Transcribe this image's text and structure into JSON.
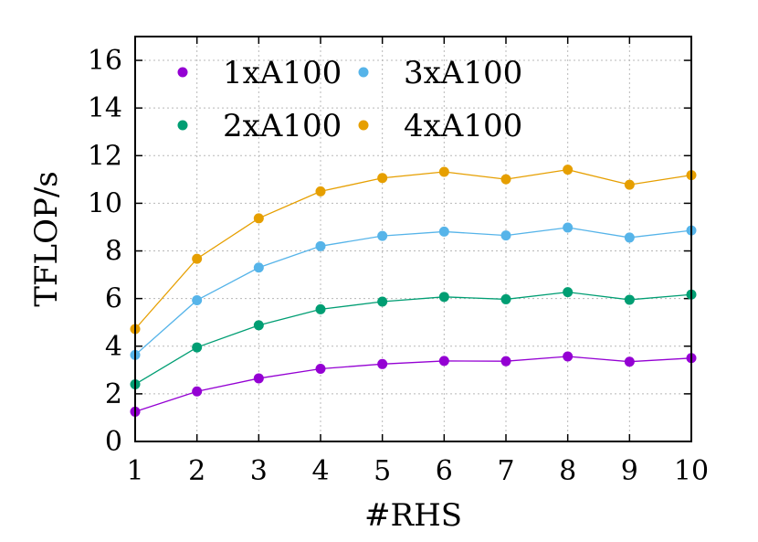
{
  "chart_data": {
    "type": "line",
    "xlabel": "#RHS",
    "ylabel": "TFLOP/s",
    "x": [
      1,
      2,
      3,
      4,
      5,
      6,
      7,
      8,
      9,
      10
    ],
    "xlim": [
      1,
      10
    ],
    "ylim": [
      0,
      17
    ],
    "x_ticks": [
      "1",
      "2",
      "3",
      "4",
      "5",
      "6",
      "7",
      "8",
      "9",
      "10"
    ],
    "y_ticks": [
      "0",
      "2",
      "4",
      "6",
      "8",
      "10",
      "12",
      "14",
      "16"
    ],
    "grid": true,
    "legend": "top-left",
    "series": [
      {
        "name": "1xA100",
        "color": "#9400d3",
        "values": [
          1.25,
          2.1,
          2.65,
          3.05,
          3.25,
          3.38,
          3.37,
          3.57,
          3.35,
          3.5
        ]
      },
      {
        "name": "2xA100",
        "color": "#009e73",
        "values": [
          2.4,
          3.95,
          4.88,
          5.55,
          5.87,
          6.07,
          5.97,
          6.27,
          5.95,
          6.17
        ]
      },
      {
        "name": "3xA100",
        "color": "#56b4e9",
        "values": [
          3.63,
          5.93,
          7.3,
          8.2,
          8.63,
          8.81,
          8.65,
          8.98,
          8.56,
          8.86
        ]
      },
      {
        "name": "4xA100",
        "color": "#e69f00",
        "values": [
          4.72,
          7.67,
          9.37,
          10.5,
          11.06,
          11.32,
          11.01,
          11.41,
          10.78,
          11.18
        ]
      }
    ]
  }
}
